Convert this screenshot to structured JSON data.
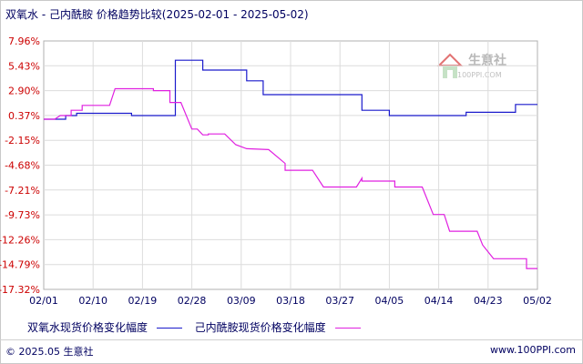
{
  "header": {
    "title": "双氧水 - 己内酰胺 价格趋势比较(2025-02-01 - 2025-05-02)"
  },
  "watermark": {
    "brand": "生意社",
    "url": "100PPI.COM"
  },
  "legend": {
    "series1": "双氧水现货价格变化幅度",
    "series2": "己内酰胺现货价格变化幅度"
  },
  "footer": {
    "copyright": "© 2025.05 生意社",
    "url": "www.100PPI.com"
  },
  "colors": {
    "series1": "#1a1acc",
    "series2": "#e020e0",
    "grid": "#dcdcdc",
    "ytick": "#cc0000"
  },
  "chart_data": {
    "type": "line",
    "x_ticks": [
      "02/01",
      "02/10",
      "02/19",
      "02/28",
      "03/09",
      "03/18",
      "03/27",
      "04/05",
      "04/14",
      "04/23",
      "05/02"
    ],
    "y_ticks": [
      "7.96%",
      "5.43%",
      "2.90%",
      "0.37%",
      "-2.15%",
      "-4.68%",
      "-7.21%",
      "-9.73%",
      "-12.26%",
      "-14.79%",
      "-17.32%"
    ],
    "ylim": [
      -17.32,
      7.96
    ],
    "xlim": [
      "2025-02-01",
      "2025-05-02"
    ],
    "grid": true,
    "series": [
      {
        "name": "双氧水现货价格变化幅度",
        "points": [
          [
            "2025-02-01",
            0
          ],
          [
            "2025-02-05",
            0
          ],
          [
            "2025-02-05",
            0.37
          ],
          [
            "2025-02-07",
            0.37
          ],
          [
            "2025-02-07",
            0.6
          ],
          [
            "2025-02-17",
            0.6
          ],
          [
            "2025-02-17",
            0.37
          ],
          [
            "2025-02-25",
            0.37
          ],
          [
            "2025-02-25",
            6.0
          ],
          [
            "2025-03-02",
            6.0
          ],
          [
            "2025-03-02",
            5.0
          ],
          [
            "2025-03-10",
            5.0
          ],
          [
            "2025-03-10",
            3.9
          ],
          [
            "2025-03-13",
            3.9
          ],
          [
            "2025-03-13",
            2.5
          ],
          [
            "2025-03-31",
            2.5
          ],
          [
            "2025-03-31",
            0.9
          ],
          [
            "2025-04-05",
            0.9
          ],
          [
            "2025-04-05",
            0.37
          ],
          [
            "2025-04-19",
            0.37
          ],
          [
            "2025-04-19",
            0.7
          ],
          [
            "2025-04-28",
            0.7
          ],
          [
            "2025-04-28",
            1.5
          ],
          [
            "2025-05-02",
            1.5
          ]
        ]
      },
      {
        "name": "己内酰胺现货价格变化幅度",
        "points": [
          [
            "2025-02-01",
            0
          ],
          [
            "2025-02-03",
            0
          ],
          [
            "2025-02-04",
            0.37
          ],
          [
            "2025-02-06",
            0.37
          ],
          [
            "2025-02-06",
            0.9
          ],
          [
            "2025-02-08",
            0.9
          ],
          [
            "2025-02-08",
            1.4
          ],
          [
            "2025-02-13",
            1.4
          ],
          [
            "2025-02-14",
            3.1
          ],
          [
            "2025-02-21",
            3.1
          ],
          [
            "2025-02-21",
            2.9
          ],
          [
            "2025-02-24",
            2.9
          ],
          [
            "2025-02-24",
            1.7
          ],
          [
            "2025-02-26",
            1.7
          ],
          [
            "2025-02-28",
            -1.0
          ],
          [
            "2025-03-01",
            -1.0
          ],
          [
            "2025-03-02",
            -1.6
          ],
          [
            "2025-03-03",
            -1.6
          ],
          [
            "2025-03-03",
            -1.5
          ],
          [
            "2025-03-06",
            -1.5
          ],
          [
            "2025-03-08",
            -2.6
          ],
          [
            "2025-03-10",
            -3.0
          ],
          [
            "2025-03-14",
            -3.1
          ],
          [
            "2025-03-17",
            -4.5
          ],
          [
            "2025-03-17",
            -5.2
          ],
          [
            "2025-03-22",
            -5.2
          ],
          [
            "2025-03-24",
            -6.9
          ],
          [
            "2025-03-30",
            -6.9
          ],
          [
            "2025-03-31",
            -6.0
          ],
          [
            "2025-03-31",
            -6.3
          ],
          [
            "2025-04-06",
            -6.3
          ],
          [
            "2025-04-06",
            -6.9
          ],
          [
            "2025-04-11",
            -6.9
          ],
          [
            "2025-04-13",
            -9.7
          ],
          [
            "2025-04-15",
            -9.7
          ],
          [
            "2025-04-16",
            -11.4
          ],
          [
            "2025-04-21",
            -11.4
          ],
          [
            "2025-04-22",
            -12.8
          ],
          [
            "2025-04-24",
            -14.2
          ],
          [
            "2025-04-30",
            -14.2
          ],
          [
            "2025-04-30",
            -15.2
          ],
          [
            "2025-05-02",
            -15.2
          ]
        ]
      }
    ]
  }
}
